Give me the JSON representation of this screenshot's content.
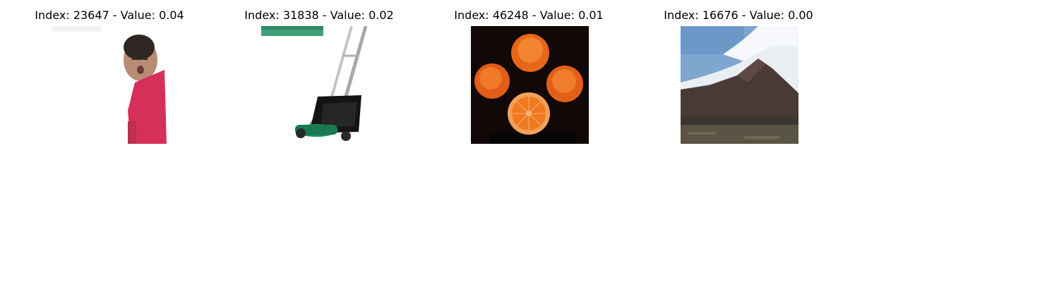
{
  "panels": [
    {
      "title": "Index: 23647 - Value: 0.04",
      "subject": "child-in-red-shirt",
      "background_color": "#ffffff",
      "accent_color": "#d6305a"
    },
    {
      "title": "Index: 31838 - Value: 0.02",
      "subject": "lawn-mower",
      "background_color": "#ffffff",
      "accent_color": "#1d8a5c"
    },
    {
      "title": "Index: 46248 - Value: 0.01",
      "subject": "oranges",
      "background_color": "#120808",
      "accent_color": "#f07a20"
    },
    {
      "title": "Index: 16676 - Value: 0.00",
      "subject": "mountain",
      "background_color": "#7fa6cf",
      "accent_color": "#4a3a36"
    }
  ]
}
